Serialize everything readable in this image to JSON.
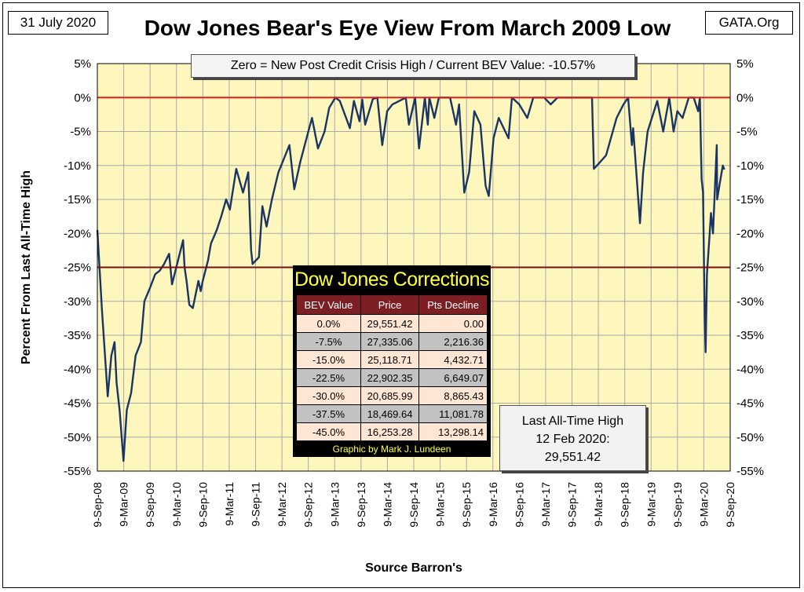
{
  "header": {
    "date": "31 July 2020",
    "site": "GATA.Org",
    "title": "Dow Jones Bear's Eye View From March 2009 Low"
  },
  "note": "Zero = New Post Credit Crisis High / Current BEV Value:  -10.57%",
  "corrections": {
    "title": "Dow Jones Corrections",
    "columns": [
      "BEV Value",
      "Price",
      "Pts Decline"
    ],
    "rows": [
      [
        "0.0%",
        "29,551.42",
        "0.00"
      ],
      [
        "-7.5%",
        "27,335.06",
        "2,216.36"
      ],
      [
        "-15.0%",
        "25,118.71",
        "4,432.71"
      ],
      [
        "-22.5%",
        "22,902.35",
        "6,649.07"
      ],
      [
        "-30.0%",
        "20,685.99",
        "8,865.43"
      ],
      [
        "-37.5%",
        "18,469.64",
        "11,081.78"
      ],
      [
        "-45.0%",
        "16,253.28",
        "13,298.14"
      ]
    ],
    "credit": "Graphic by Mark J. Lundeen"
  },
  "ath": {
    "line1": "Last All-Time High",
    "line2": "12 Feb 2020:",
    "line3": "29,551.42"
  },
  "colors": {
    "plot_bg": "#fdf6bd",
    "series": "#1a3563",
    "zero_line": "#e0201e",
    "level_line": "#7a0f12",
    "grid": "#a9a9a9"
  },
  "chart_data": {
    "type": "line",
    "ylabel": "Percent From Last All-Time High",
    "xlabel": "Source Barron's",
    "ylim": [
      -55,
      5
    ],
    "yticks": [
      "5%",
      "0%",
      "-5%",
      "-10%",
      "-15%",
      "-20%",
      "-25%",
      "-30%",
      "-35%",
      "-40%",
      "-45%",
      "-50%",
      "-55%"
    ],
    "xticks": [
      "9-Sep-08",
      "9-Mar-09",
      "9-Sep-09",
      "9-Mar-10",
      "9-Sep-10",
      "9-Mar-11",
      "9-Sep-11",
      "9-Mar-12",
      "9-Sep-12",
      "9-Mar-13",
      "9-Sep-13",
      "9-Mar-14",
      "9-Sep-14",
      "9-Mar-15",
      "9-Sep-15",
      "9-Mar-16",
      "9-Sep-16",
      "9-Mar-17",
      "9-Sep-17",
      "9-Mar-18",
      "9-Sep-18",
      "9-Mar-19",
      "9-Sep-19",
      "9-Mar-20",
      "9-Sep-20"
    ],
    "reference_lines": [
      0,
      -25
    ],
    "grid": true,
    "series": [
      {
        "x": [
          "2008-09-09",
          "2008-10-10",
          "2008-11-20",
          "2008-12-15",
          "2009-01-06",
          "2009-01-20",
          "2009-02-10",
          "2009-03-09",
          "2009-04-01",
          "2009-05-01",
          "2009-06-01",
          "2009-07-08",
          "2009-08-01",
          "2009-09-09",
          "2009-10-15",
          "2009-11-15",
          "2009-12-15",
          "2010-01-19",
          "2010-02-08",
          "2010-04-26",
          "2010-05-06",
          "2010-05-20",
          "2010-06-08",
          "2010-07-02",
          "2010-08-10",
          "2010-08-26",
          "2010-09-09",
          "2010-10-15",
          "2010-11-05",
          "2010-12-15",
          "2011-01-15",
          "2011-02-18",
          "2011-03-16",
          "2011-04-29",
          "2011-06-15",
          "2011-07-21",
          "2011-08-10",
          "2011-08-20",
          "2011-10-03",
          "2011-10-27",
          "2011-11-25",
          "2012-01-01",
          "2012-02-15",
          "2012-05-01",
          "2012-06-04",
          "2012-07-15",
          "2012-09-09",
          "2012-10-05",
          "2012-11-15",
          "2012-12-31",
          "2013-02-01",
          "2013-03-15",
          "2013-04-15",
          "2013-06-24",
          "2013-07-22",
          "2013-08-30",
          "2013-09-18",
          "2013-10-08",
          "2013-11-30",
          "2013-12-31",
          "2014-02-03",
          "2014-03-09",
          "2014-04-15",
          "2014-06-01",
          "2014-07-16",
          "2014-08-07",
          "2014-09-19",
          "2014-10-16",
          "2014-11-25",
          "2014-12-16",
          "2014-12-26",
          "2015-01-30",
          "2015-03-02",
          "2015-05-19",
          "2015-06-29",
          "2015-07-20",
          "2015-08-25",
          "2015-09-28",
          "2015-11-03",
          "2015-12-15",
          "2016-01-20",
          "2016-02-11",
          "2016-03-15",
          "2016-04-20",
          "2016-06-27",
          "2016-07-20",
          "2016-09-09",
          "2016-11-04",
          "2016-12-15",
          "2017-01-15",
          "2017-03-01",
          "2017-04-15",
          "2017-06-01",
          "2017-08-10",
          "2017-09-09",
          "2017-10-15",
          "2017-11-30",
          "2018-01-26",
          "2018-02-08",
          "2018-03-23",
          "2018-05-03",
          "2018-07-15",
          "2018-09-01",
          "2018-10-03",
          "2018-10-29",
          "2018-11-07",
          "2018-12-24",
          "2019-01-15",
          "2019-02-15",
          "2019-04-23",
          "2019-06-03",
          "2019-07-15",
          "2019-08-14",
          "2019-09-09",
          "2019-10-15",
          "2019-11-27",
          "2019-12-31",
          "2020-01-31",
          "2020-02-12",
          "2020-02-24",
          "2020-03-05",
          "2020-03-16",
          "2020-03-23",
          "2020-04-01",
          "2020-04-17",
          "2020-04-29",
          "2020-05-13",
          "2020-06-08",
          "2020-06-11",
          "2020-06-26",
          "2020-07-20",
          "2020-07-31"
        ],
        "values": [
          -19.5,
          -31,
          -44,
          -38,
          -36,
          -42,
          -46,
          -53.5,
          -46,
          -43.5,
          -38,
          -36,
          -30,
          -28,
          -26,
          -25.5,
          -24.5,
          -23,
          -27.5,
          -21,
          -25,
          -27,
          -30.5,
          -31,
          -27,
          -28.5,
          -27,
          -24,
          -21.5,
          -19.5,
          -17.5,
          -15,
          -16.5,
          -10.5,
          -14,
          -11,
          -22.5,
          -24.5,
          -23.5,
          -16,
          -19,
          -15,
          -11,
          -7,
          -13.5,
          -9.5,
          -5,
          -3,
          -7.5,
          -5,
          -1.5,
          0,
          -0.5,
          -4.5,
          -0.5,
          -3.5,
          -0.3,
          -4,
          -0.2,
          0,
          -7,
          -2,
          -1,
          -0.5,
          0,
          -4,
          0,
          -7.5,
          0,
          -4,
          0,
          -3,
          0,
          0,
          -4,
          -1,
          -14,
          -11,
          -2,
          -4,
          -13,
          -14.5,
          -6,
          -3,
          -6,
          0,
          -1,
          -3,
          0,
          0,
          0,
          -1,
          0,
          0,
          0,
          0,
          0,
          0,
          -10.5,
          -9.5,
          -8.5,
          -3,
          -1,
          0,
          -7,
          -4.5,
          -18.5,
          -11,
          -5,
          -0.5,
          -5,
          0,
          -5,
          -2,
          -3,
          0,
          0,
          -2,
          0,
          -12,
          -14,
          -32,
          -37.5,
          -26,
          -21,
          -17,
          -20,
          -7,
          -15,
          -13,
          -10,
          -10.6
        ]
      }
    ]
  }
}
